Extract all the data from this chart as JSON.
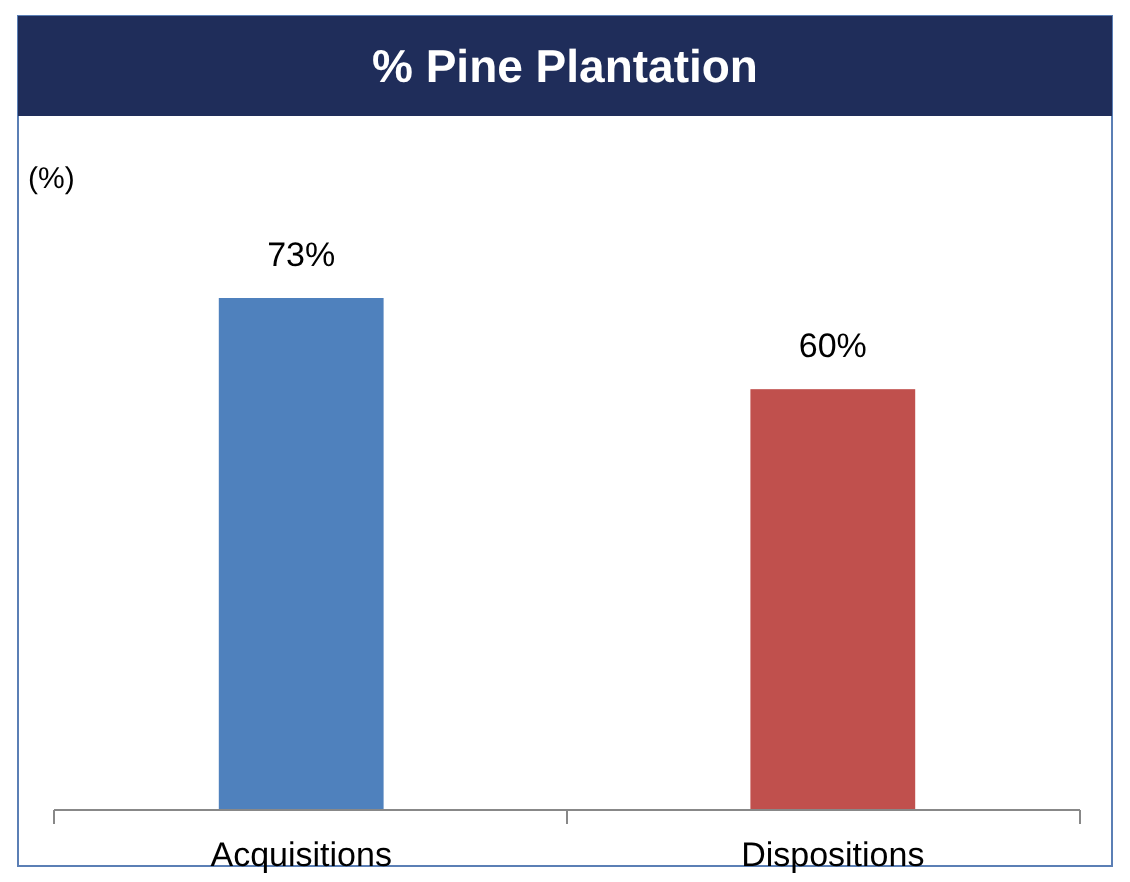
{
  "chart_data": {
    "type": "bar",
    "title": "% Pine Plantation",
    "ylabel": "(%)",
    "categories": [
      "Acquisitions",
      "Dispositions"
    ],
    "values": [
      73,
      60
    ],
    "colors": [
      "#4f81bd",
      "#c0504d"
    ],
    "value_labels": [
      "73%",
      "60%"
    ],
    "grid": false
  }
}
